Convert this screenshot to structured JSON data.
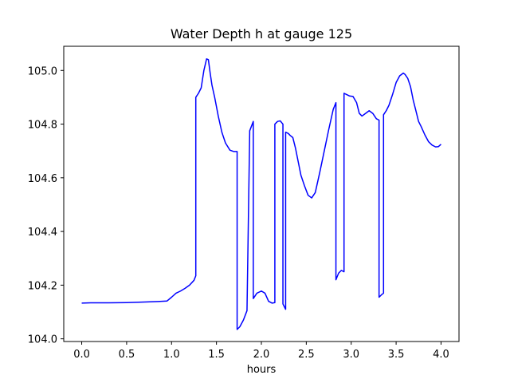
{
  "chart_data": {
    "type": "line",
    "title": "Water Depth h at gauge 125",
    "xlabel": "hours",
    "ylabel": "",
    "xlim": [
      -0.2,
      4.2
    ],
    "ylim": [
      103.99,
      105.09
    ],
    "xticks": [
      0.0,
      0.5,
      1.0,
      1.5,
      2.0,
      2.5,
      3.0,
      3.5,
      4.0
    ],
    "xtick_labels": [
      "0.0",
      "0.5",
      "1.0",
      "1.5",
      "2.0",
      "2.5",
      "3.0",
      "3.5",
      "4.0"
    ],
    "yticks": [
      104.0,
      104.2,
      104.4,
      104.6,
      104.8,
      105.0
    ],
    "ytick_labels": [
      "104.0",
      "104.2",
      "104.4",
      "104.6",
      "104.8",
      "105.0"
    ],
    "grid": false,
    "legend": false,
    "series": [
      {
        "color": "#0000ff",
        "x": [
          0.0,
          0.1,
          0.3,
          0.5,
          0.7,
          0.85,
          0.95,
          1.0,
          1.05,
          1.1,
          1.15,
          1.2,
          1.25,
          1.27,
          1.27,
          1.3,
          1.33,
          1.36,
          1.39,
          1.41,
          1.43,
          1.45,
          1.48,
          1.52,
          1.56,
          1.6,
          1.65,
          1.69,
          1.73,
          1.73,
          1.76,
          1.8,
          1.84,
          1.87,
          1.87,
          1.91,
          1.91,
          1.95,
          2.0,
          2.04,
          2.08,
          2.12,
          2.15,
          2.15,
          2.18,
          2.21,
          2.24,
          2.24,
          2.27,
          2.27,
          2.3,
          2.32,
          2.35,
          2.38,
          2.41,
          2.44,
          2.48,
          2.52,
          2.56,
          2.6,
          2.65,
          2.7,
          2.75,
          2.8,
          2.83,
          2.83,
          2.86,
          2.89,
          2.92,
          2.92,
          2.95,
          2.98,
          3.02,
          3.06,
          3.09,
          3.12,
          3.16,
          3.2,
          3.24,
          3.28,
          3.31,
          3.31,
          3.34,
          3.36,
          3.36,
          3.39,
          3.42,
          3.46,
          3.5,
          3.54,
          3.58,
          3.6,
          3.63,
          3.66,
          3.69,
          3.72,
          3.75,
          3.78,
          3.82,
          3.86,
          3.9,
          3.94,
          3.97,
          4.0
        ],
        "y": [
          104.133,
          104.134,
          104.134,
          104.135,
          104.137,
          104.139,
          104.141,
          104.155,
          104.17,
          104.178,
          104.188,
          104.2,
          104.218,
          104.235,
          104.9,
          104.915,
          104.935,
          105.0,
          105.043,
          105.04,
          104.99,
          104.945,
          104.9,
          104.83,
          104.77,
          104.73,
          104.703,
          104.698,
          104.698,
          104.035,
          104.045,
          104.07,
          104.105,
          104.77,
          104.775,
          104.81,
          104.15,
          104.17,
          104.178,
          104.17,
          104.14,
          104.133,
          104.135,
          104.8,
          104.81,
          104.812,
          104.8,
          104.13,
          104.11,
          104.77,
          104.765,
          104.758,
          104.75,
          104.71,
          104.66,
          104.61,
          104.57,
          104.535,
          104.525,
          104.545,
          104.62,
          104.7,
          104.78,
          104.855,
          104.88,
          104.22,
          104.245,
          104.255,
          104.25,
          104.915,
          104.91,
          104.905,
          104.903,
          104.88,
          104.84,
          104.83,
          104.84,
          104.85,
          104.84,
          104.82,
          104.815,
          104.155,
          104.165,
          104.17,
          104.835,
          104.85,
          104.87,
          104.91,
          104.955,
          104.98,
          104.99,
          104.985,
          104.97,
          104.94,
          104.89,
          104.85,
          104.81,
          104.79,
          104.76,
          104.735,
          104.722,
          104.715,
          104.716,
          104.725
        ]
      }
    ]
  }
}
